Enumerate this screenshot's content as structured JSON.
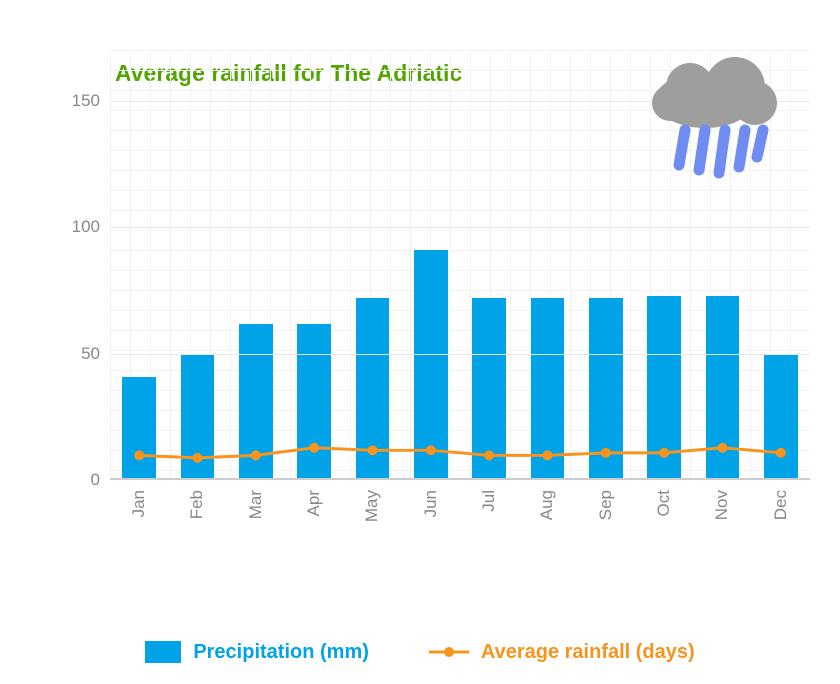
{
  "chart": {
    "type": "bar+line",
    "title": "Average rainfall for The Adriatic",
    "title_color": "#52a500",
    "title_fontsize": 23,
    "background_color": "#ffffff",
    "grid_color": "#f2f2f2",
    "axis_label_color": "#888888",
    "axis_label_fontsize": 17,
    "y": {
      "min": 0,
      "max": 170,
      "ticks": [
        0,
        50,
        100,
        150
      ]
    },
    "categories": [
      "Jan",
      "Feb",
      "Mar",
      "Apr",
      "May",
      "Jun",
      "Jul",
      "Aug",
      "Sep",
      "Oct",
      "Nov",
      "Dec"
    ],
    "bars": {
      "label": "Precipitation (mm)",
      "color": "#00a2e8",
      "legend_text_color": "#00a2e8",
      "values": [
        40,
        49,
        61,
        61,
        71,
        90,
        71,
        71,
        71,
        72,
        72,
        49
      ],
      "bar_width_frac": 0.58
    },
    "line": {
      "label": "Average rainfall (days)",
      "color": "#f7941d",
      "legend_text_color": "#f7941d",
      "values": [
        9,
        8,
        9,
        12,
        11,
        11,
        9,
        9,
        10,
        10,
        12,
        10
      ],
      "stroke_width": 3,
      "marker_radius": 5
    },
    "icon": {
      "name": "rain-cloud-icon",
      "cloud_color": "#9e9e9e",
      "rain_color": "#6f8cf0"
    }
  }
}
